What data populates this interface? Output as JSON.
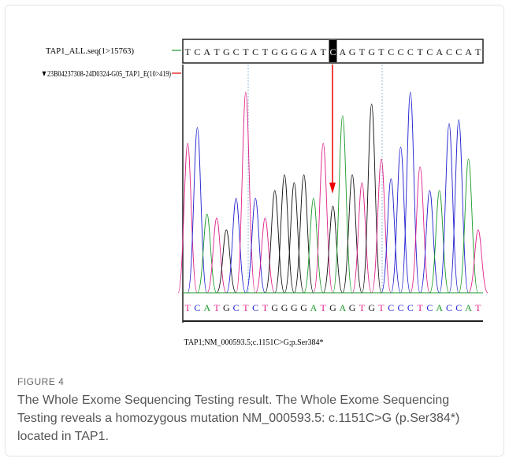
{
  "figure": {
    "track_label": "TAP1_ALL.seq(1>15763)",
    "sample_label": "▼23B04237308-24D0324-G05_TAP1_E(10>419)",
    "reference_sequence": [
      "T",
      "C",
      "A",
      "T",
      "G",
      "C",
      "T",
      "C",
      "T",
      "G",
      "G",
      "G",
      "G",
      "A",
      "T",
      "C",
      "A",
      "G",
      "T",
      "G",
      "T",
      "C",
      "C",
      "C",
      "T",
      "C",
      "A",
      "C",
      "C",
      "A",
      "T"
    ],
    "sample_sequence": [
      "T",
      "C",
      "A",
      "T",
      "G",
      "C",
      "T",
      "C",
      "T",
      "G",
      "G",
      "G",
      "G",
      "A",
      "T",
      "G",
      "A",
      "G",
      "T",
      "G",
      "T",
      "C",
      "C",
      "C",
      "T",
      "C",
      "A",
      "C",
      "C",
      "A",
      "T"
    ],
    "image_caption": "TAP1;NM_000593.5;c.1151C>G;p.Ser384*",
    "label": "FIGURE 4",
    "caption": "The Whole Exome Sequencing Testing result. The Whole Exome Sequencing Testing reveals a homozygous mutation NM_000593.5: c.1151C>G (p.Ser384*) located in TAP1."
  }
}
